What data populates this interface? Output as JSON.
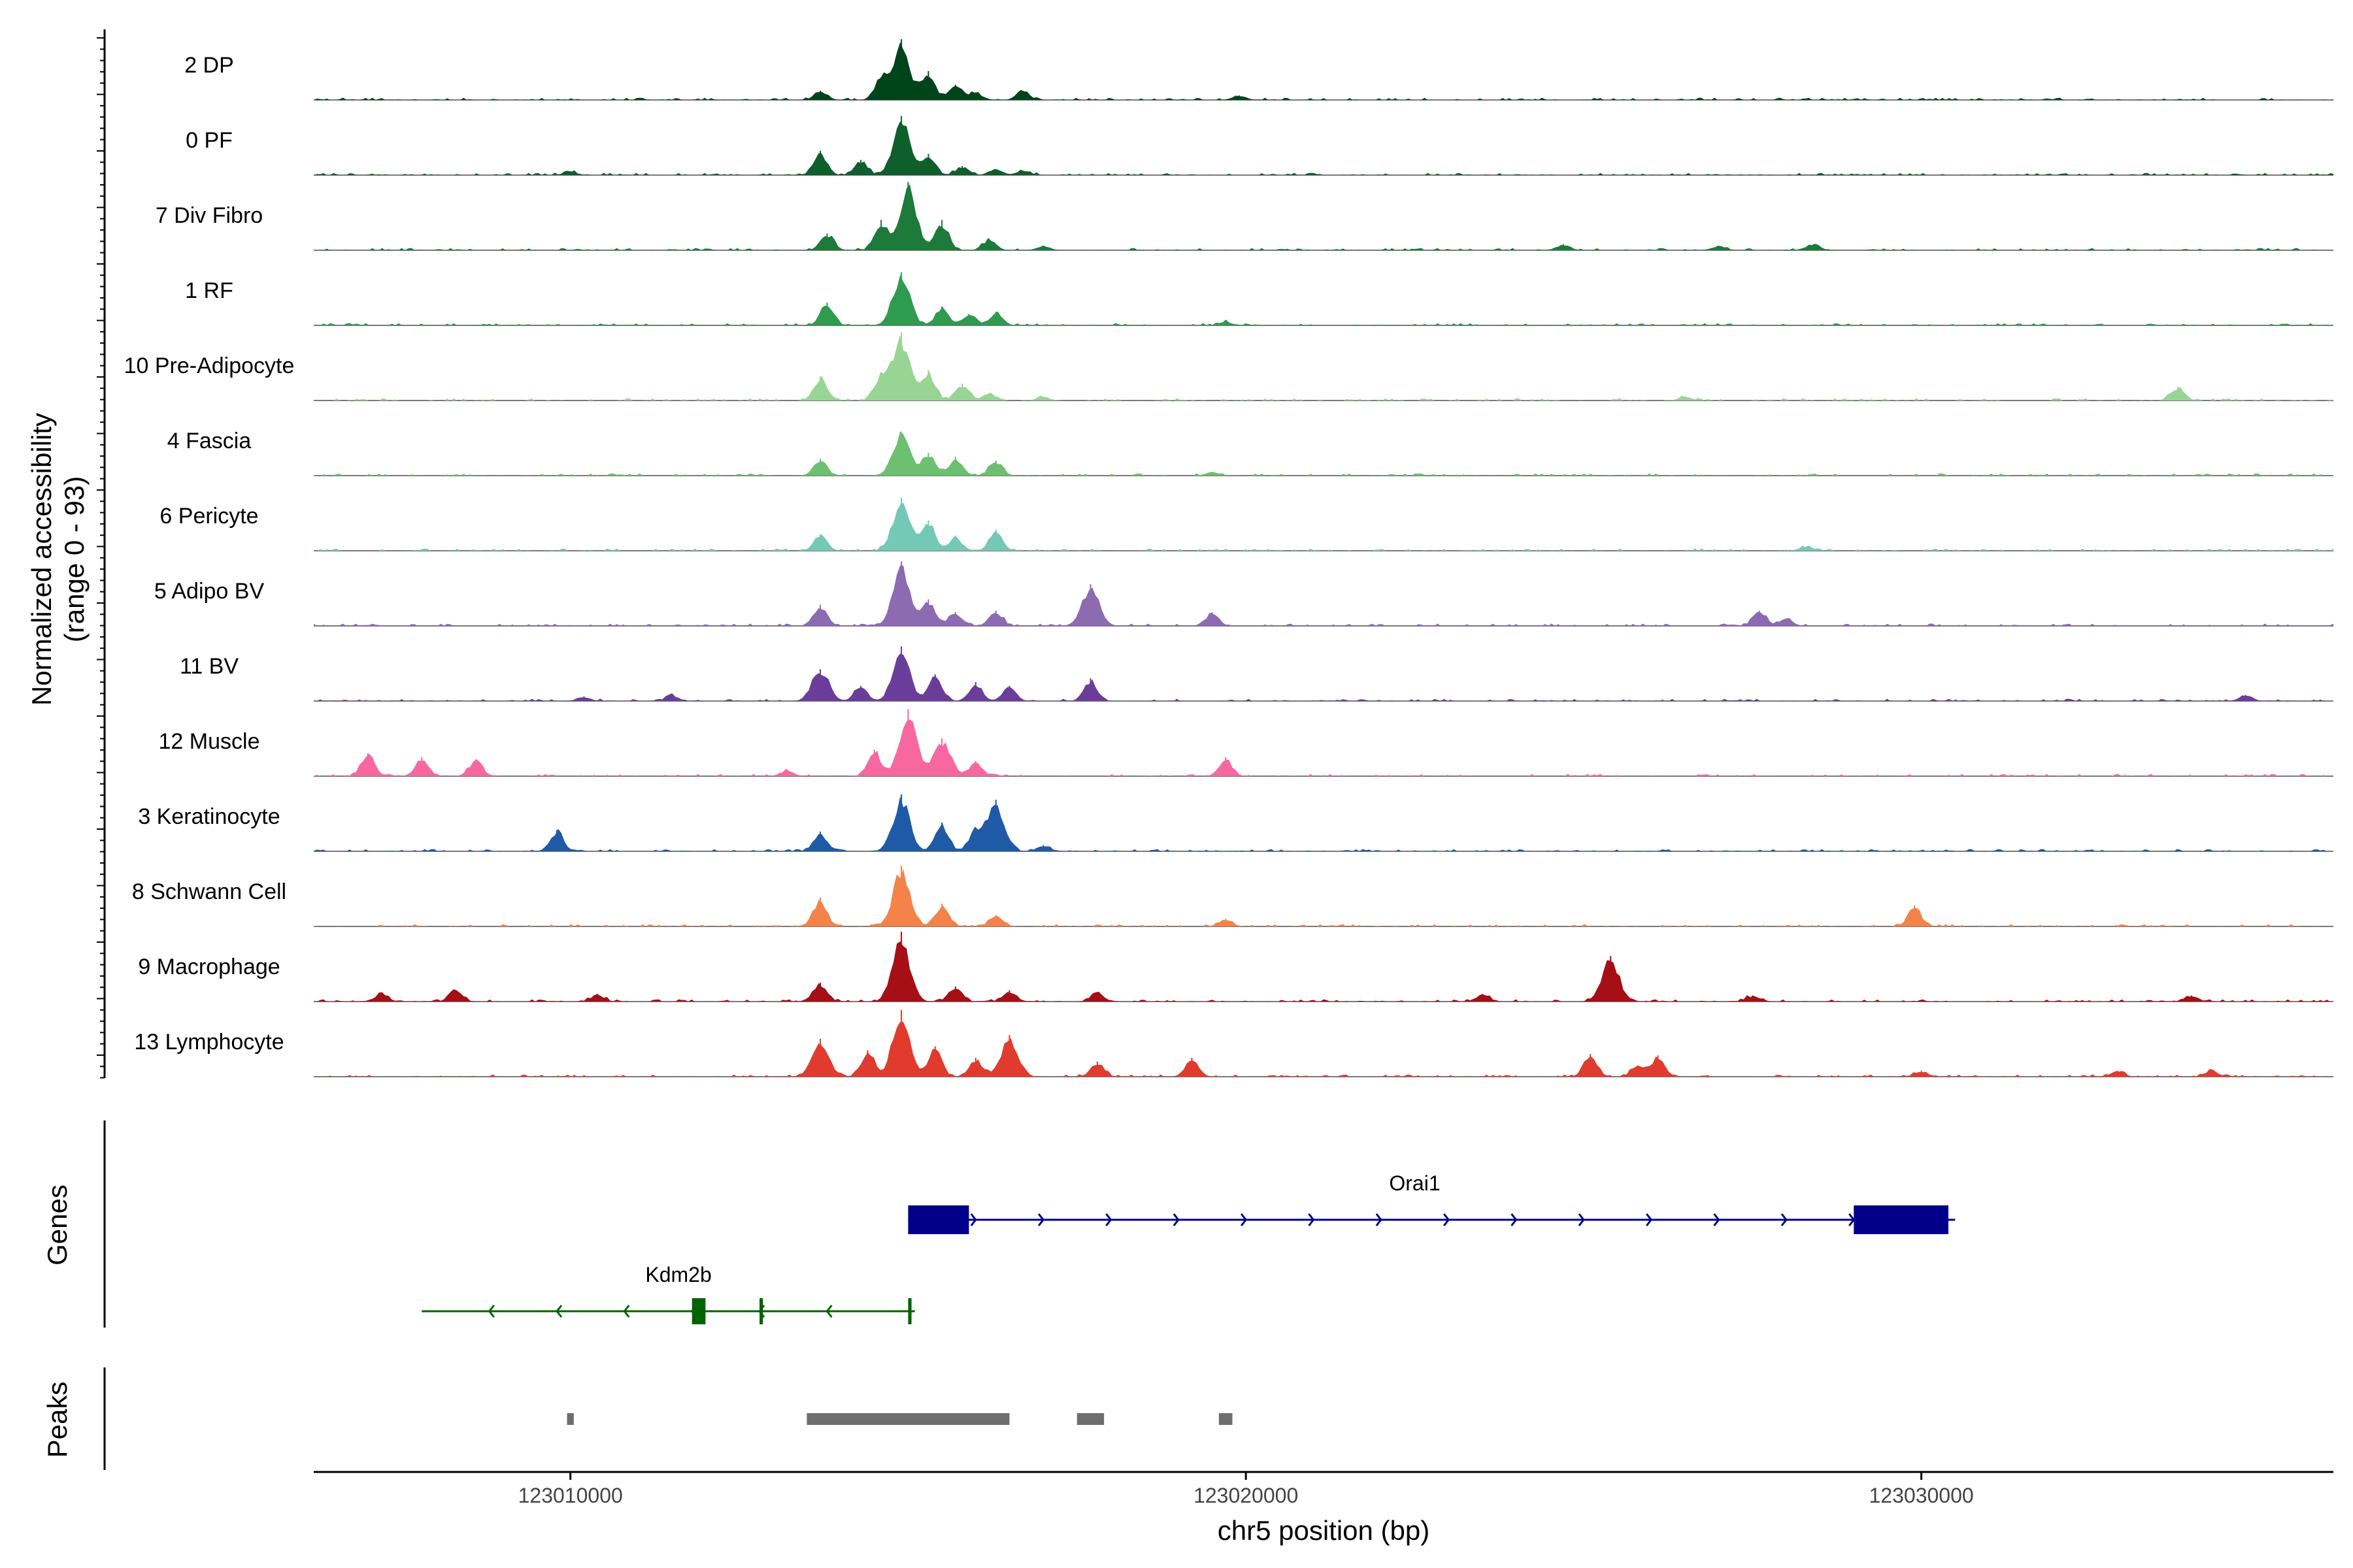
{
  "chart_data": {
    "type": "genome-coverage",
    "ylabel": "Normalized accessibility",
    "ylabel_range": "(range 0 - 93)",
    "y_range": [
      0,
      93
    ],
    "xlabel": "chr5 position (bp)",
    "xlim": [
      123006200,
      123036100
    ],
    "x_ticks": [
      123010000,
      123020000,
      123030000
    ],
    "x_tick_labels": [
      "123010000",
      "123020000",
      "123030000"
    ],
    "tracks": [
      {
        "name": "2 DP",
        "color": "#00441b",
        "peaks": [
          [
            123013700,
            12
          ],
          [
            123014600,
            30
          ],
          [
            123014900,
            80
          ],
          [
            123015300,
            38
          ],
          [
            123015700,
            20
          ],
          [
            123016000,
            10
          ],
          [
            123016700,
            12
          ],
          [
            123019900,
            6
          ]
        ]
      },
      {
        "name": "0 PF",
        "color": "#0e5f2c",
        "peaks": [
          [
            123013700,
            32
          ],
          [
            123014300,
            20
          ],
          [
            123014900,
            78
          ],
          [
            123015300,
            28
          ],
          [
            123015800,
            12
          ],
          [
            123016300,
            8
          ],
          [
            123016700,
            6
          ],
          [
            123010000,
            5
          ]
        ]
      },
      {
        "name": "7 Div Fibro",
        "color": "#1d7a3a",
        "peaks": [
          [
            123013800,
            22
          ],
          [
            123014600,
            40
          ],
          [
            123015000,
            90
          ],
          [
            123015500,
            40
          ],
          [
            123016200,
            15
          ],
          [
            123017000,
            6
          ],
          [
            123024700,
            8
          ],
          [
            123027000,
            6
          ],
          [
            123028400,
            8
          ]
        ]
      },
      {
        "name": "1 RF",
        "color": "#2e9b4e",
        "peaks": [
          [
            123013800,
            30
          ],
          [
            123014900,
            70
          ],
          [
            123015500,
            25
          ],
          [
            123015900,
            15
          ],
          [
            123016300,
            18
          ],
          [
            123019700,
            5
          ]
        ]
      },
      {
        "name": "10 Pre-Adipocyte",
        "color": "#98d494",
        "peaks": [
          [
            123013700,
            32
          ],
          [
            123014600,
            35
          ],
          [
            123014900,
            90
          ],
          [
            123015300,
            40
          ],
          [
            123015800,
            22
          ],
          [
            123016200,
            10
          ],
          [
            123017000,
            5
          ],
          [
            123033800,
            18
          ],
          [
            123026500,
            5
          ]
        ]
      },
      {
        "name": "4 Fascia",
        "color": "#6cc070",
        "peaks": [
          [
            123013700,
            22
          ],
          [
            123014900,
            58
          ],
          [
            123015300,
            30
          ],
          [
            123015700,
            25
          ],
          [
            123016300,
            20
          ],
          [
            123019500,
            5
          ]
        ]
      },
      {
        "name": "6 Pericyte",
        "color": "#73c9b5",
        "peaks": [
          [
            123013700,
            22
          ],
          [
            123014900,
            70
          ],
          [
            123015300,
            40
          ],
          [
            123015700,
            20
          ],
          [
            123016300,
            28
          ],
          [
            123028300,
            6
          ]
        ]
      },
      {
        "name": "5 Adipo BV",
        "color": "#8c6bb1",
        "peaks": [
          [
            123013700,
            28
          ],
          [
            123014900,
            85
          ],
          [
            123015300,
            35
          ],
          [
            123015700,
            18
          ],
          [
            123016300,
            20
          ],
          [
            123017700,
            55
          ],
          [
            123019500,
            18
          ],
          [
            123027600,
            20
          ],
          [
            123028000,
            10
          ]
        ]
      },
      {
        "name": "11 BV",
        "color": "#6a3d9a",
        "peaks": [
          [
            123013700,
            42
          ],
          [
            123014300,
            20
          ],
          [
            123014900,
            72
          ],
          [
            123015400,
            35
          ],
          [
            123016000,
            25
          ],
          [
            123016500,
            20
          ],
          [
            123017700,
            30
          ],
          [
            123011500,
            8
          ],
          [
            123010200,
            6
          ],
          [
            123034800,
            8
          ]
        ]
      },
      {
        "name": "12 Muscle",
        "color": "#f768a1",
        "peaks": [
          [
            123007000,
            30
          ],
          [
            123007800,
            25
          ],
          [
            123008600,
            22
          ],
          [
            123014500,
            35
          ],
          [
            123015000,
            88
          ],
          [
            123015500,
            50
          ],
          [
            123016000,
            20
          ],
          [
            123019700,
            25
          ],
          [
            123013200,
            8
          ]
        ]
      },
      {
        "name": "3 Keratinocyte",
        "color": "#1f5aa6",
        "peaks": [
          [
            123009800,
            28
          ],
          [
            123013700,
            26
          ],
          [
            123014900,
            75
          ],
          [
            123015500,
            38
          ],
          [
            123016000,
            30
          ],
          [
            123016300,
            68
          ],
          [
            123017000,
            8
          ]
        ]
      },
      {
        "name": "8 Schwann Cell",
        "color": "#f4834a",
        "peaks": [
          [
            123013700,
            38
          ],
          [
            123014900,
            80
          ],
          [
            123015500,
            30
          ],
          [
            123016300,
            15
          ],
          [
            123019700,
            10
          ],
          [
            123029900,
            28
          ]
        ]
      },
      {
        "name": "9 Macrophage",
        "color": "#a50f15",
        "peaks": [
          [
            123007200,
            10
          ],
          [
            123008300,
            15
          ],
          [
            123010400,
            10
          ],
          [
            123013700,
            25
          ],
          [
            123014900,
            92
          ],
          [
            123015700,
            20
          ],
          [
            123016500,
            15
          ],
          [
            123017800,
            12
          ],
          [
            123025400,
            60
          ],
          [
            123023500,
            10
          ],
          [
            123027500,
            8
          ],
          [
            123034000,
            8
          ]
        ]
      },
      {
        "name": "13 Lymphocyte",
        "color": "#e03b2e",
        "peaks": [
          [
            123013700,
            50
          ],
          [
            123014400,
            35
          ],
          [
            123014900,
            88
          ],
          [
            123015400,
            40
          ],
          [
            123016000,
            25
          ],
          [
            123016500,
            55
          ],
          [
            123017800,
            20
          ],
          [
            123019200,
            25
          ],
          [
            123025100,
            30
          ],
          [
            123025800,
            15
          ],
          [
            123026100,
            28
          ],
          [
            123030000,
            8
          ],
          [
            123032900,
            8
          ],
          [
            123034300,
            8
          ]
        ]
      }
    ],
    "genes_track_label": "Genes",
    "genes": [
      {
        "name": "Orai1",
        "strand": "+",
        "color": "#00008b",
        "start": 123015000,
        "end": 123030500,
        "exons": [
          [
            123015000,
            123015900
          ],
          [
            123029000,
            123030400
          ]
        ]
      },
      {
        "name": "Kdm2b",
        "strand": "-",
        "color": "#006400",
        "start": 123007800,
        "end": 123015100,
        "exons": [
          [
            123011800,
            123012000
          ],
          [
            123012800,
            123012850
          ],
          [
            123015000,
            123015050
          ]
        ]
      }
    ],
    "peaks_track_label": "Peaks",
    "peak_regions": [
      [
        123009950,
        123010050
      ],
      [
        123013500,
        123016500
      ],
      [
        123017500,
        123017900
      ],
      [
        123019600,
        123019800
      ]
    ],
    "peak_color": "#6e6e6e"
  }
}
